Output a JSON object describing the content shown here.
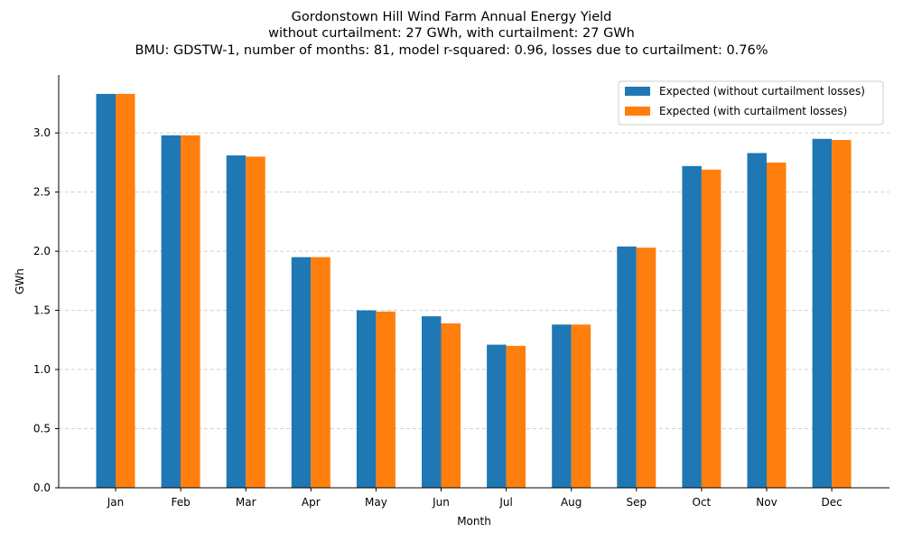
{
  "chart_data": {
    "type": "bar",
    "title": "Gordonstown Hill Wind Farm Annual Energy Yield",
    "subtitle_lines": [
      "without curtailment: 27 GWh, with curtailment: 27 GWh",
      "BMU: GDSTW-1, number of months: 81, model r-squared: 0.96, losses due to curtailment: 0.76%"
    ],
    "xlabel": "Month",
    "ylabel": "GWh",
    "categories": [
      "Jan",
      "Feb",
      "Mar",
      "Apr",
      "May",
      "Jun",
      "Jul",
      "Aug",
      "Sep",
      "Oct",
      "Nov",
      "Dec"
    ],
    "series": [
      {
        "name": "Expected (without curtailment losses)",
        "color": "#1f77b4",
        "values": [
          3.33,
          2.98,
          2.81,
          1.95,
          1.5,
          1.45,
          1.21,
          1.38,
          2.04,
          2.72,
          2.83,
          2.95
        ]
      },
      {
        "name": "Expected (with curtailment losses)",
        "color": "#ff7f0e",
        "values": [
          3.33,
          2.98,
          2.8,
          1.95,
          1.49,
          1.39,
          1.2,
          1.38,
          2.03,
          2.69,
          2.75,
          2.94
        ]
      }
    ],
    "ylim": [
      0,
      3.49
    ],
    "yticks": [
      "0.0",
      "0.5",
      "1.0",
      "1.5",
      "2.0",
      "2.5",
      "3.0"
    ],
    "grid": "horizontal-dashed",
    "legend_position": "top-right"
  }
}
